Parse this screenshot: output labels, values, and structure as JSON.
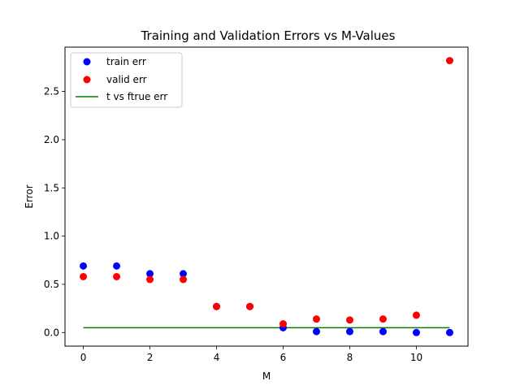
{
  "chart_data": {
    "type": "scatter",
    "title": "Training and Validation Errors vs M-Values",
    "xlabel": "M",
    "ylabel": "Error",
    "xlim": [
      -0.55,
      11.55
    ],
    "ylim": [
      -0.141,
      2.96
    ],
    "xticks": [
      0,
      2,
      4,
      6,
      8,
      10
    ],
    "yticks": [
      0.0,
      0.5,
      1.0,
      1.5,
      2.0,
      2.5
    ],
    "xtick_labels": [
      "0",
      "2",
      "4",
      "6",
      "8",
      "10"
    ],
    "ytick_labels": [
      "0.0",
      "0.5",
      "1.0",
      "1.5",
      "2.0",
      "2.5"
    ],
    "grid": false,
    "legend_position": "top-left",
    "series": [
      {
        "name": "train err",
        "kind": "scatter",
        "color": "#0000ff",
        "x": [
          0,
          1,
          2,
          3,
          4,
          5,
          6,
          7,
          8,
          9,
          10,
          11
        ],
        "y": [
          0.69,
          0.69,
          0.61,
          0.61,
          0.27,
          0.27,
          0.05,
          0.01,
          0.01,
          0.01,
          0.0,
          0.0
        ]
      },
      {
        "name": "valid err",
        "kind": "scatter",
        "color": "#ff0000",
        "x": [
          0,
          1,
          2,
          3,
          4,
          5,
          6,
          7,
          8,
          9,
          10,
          11
        ],
        "y": [
          0.58,
          0.58,
          0.55,
          0.55,
          0.27,
          0.27,
          0.09,
          0.14,
          0.13,
          0.14,
          0.18,
          2.82
        ]
      },
      {
        "name": "t vs ftrue err",
        "kind": "line",
        "color": "#008000",
        "x": [
          0,
          11
        ],
        "y": [
          0.05,
          0.05
        ]
      }
    ]
  }
}
